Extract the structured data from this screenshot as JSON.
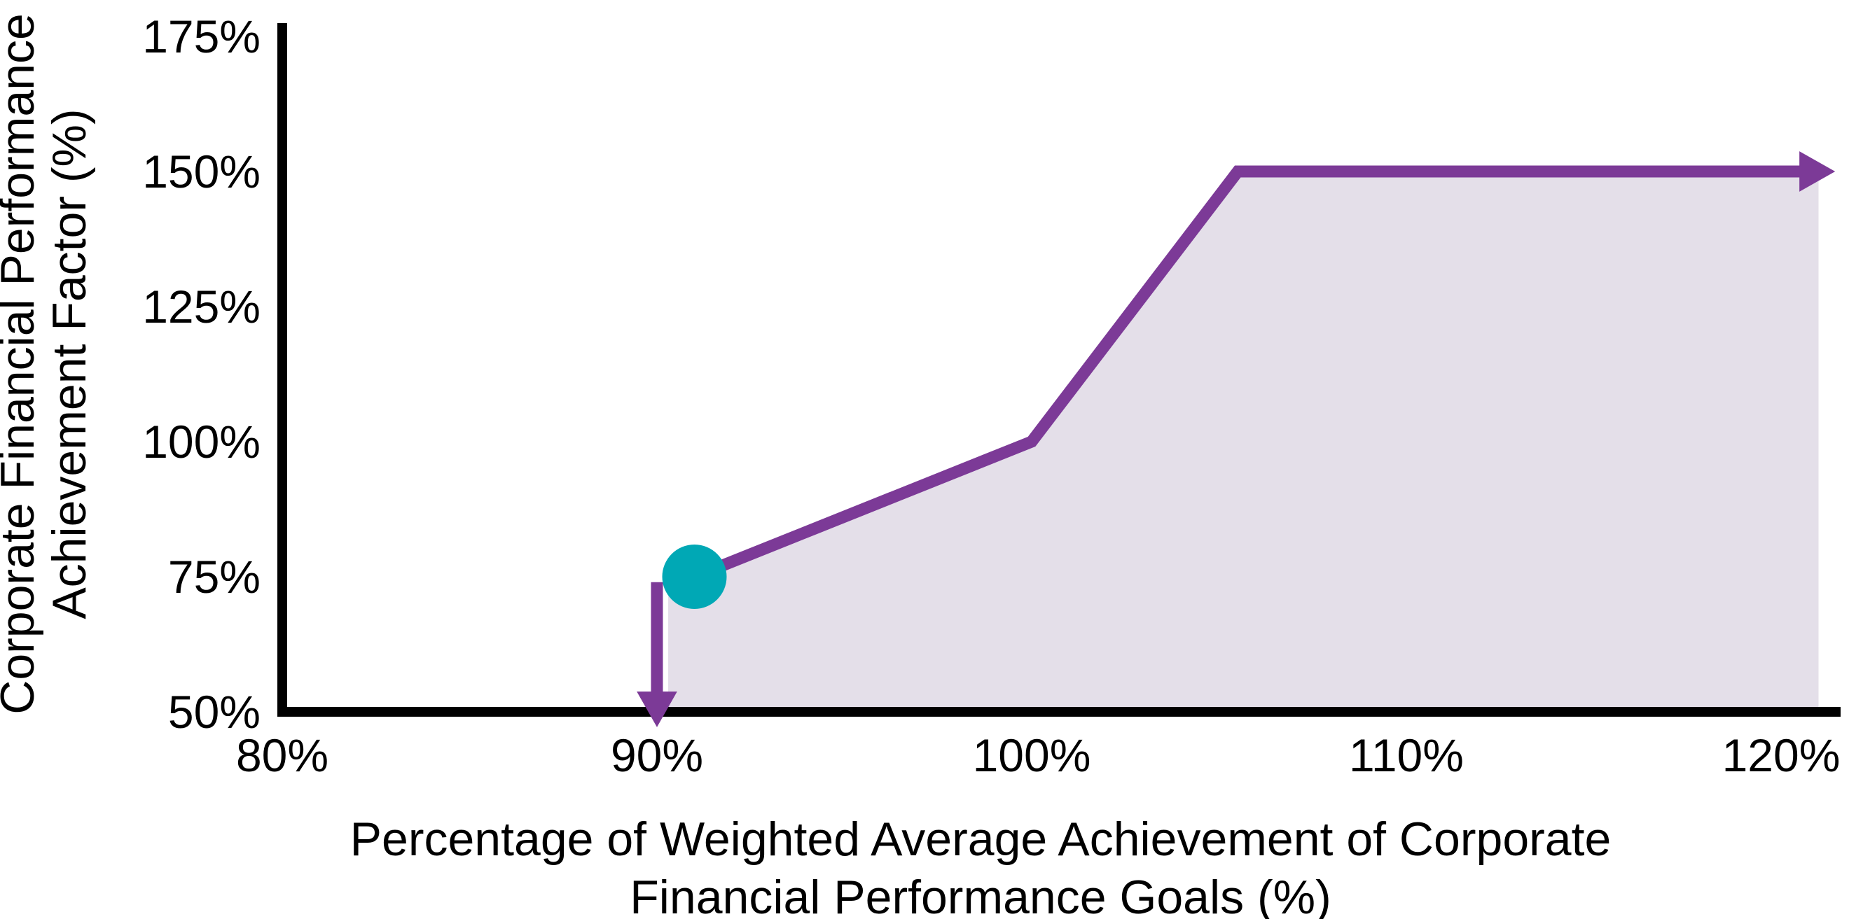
{
  "chart_data": {
    "type": "line",
    "title": "",
    "x_axis": {
      "label_lines": [
        "Percentage of Weighted Average Achievement of Corporate",
        "Financial Performance Goals (%)"
      ],
      "ticks": [
        80,
        90,
        100,
        110,
        120
      ],
      "tick_suffix": "%",
      "min": 80,
      "max": 121
    },
    "y_axis": {
      "label_lines": [
        "Corporate Financial Performance",
        "Achievement Factor (%)"
      ],
      "ticks": [
        50,
        75,
        100,
        125,
        150,
        175
      ],
      "tick_suffix": "%",
      "min": 50,
      "max": 175
    },
    "series": [
      {
        "name": "achievement-factor-curve",
        "color": "#7C3A97",
        "points": [
          [
            91,
            75
          ],
          [
            100,
            100
          ],
          [
            105.5,
            150
          ],
          [
            120.6,
            150
          ]
        ],
        "arrow_end": true
      }
    ],
    "threshold_arrow": {
      "x": 90,
      "from_y": 74,
      "to_y": 53,
      "direction": "down",
      "color": "#7C3A97"
    },
    "start_marker": {
      "x": 91,
      "y": 75,
      "color": "#00A8B5"
    },
    "area": {
      "color": "#E4DFE9",
      "points": [
        [
          90.3,
          50
        ],
        [
          90.3,
          74
        ],
        [
          91,
          75
        ],
        [
          100,
          100
        ],
        [
          105.5,
          150
        ],
        [
          121,
          150
        ],
        [
          121,
          50
        ]
      ]
    },
    "colors": {
      "axis": "#000000",
      "text": "#000000"
    },
    "legend": null,
    "grid": false
  }
}
